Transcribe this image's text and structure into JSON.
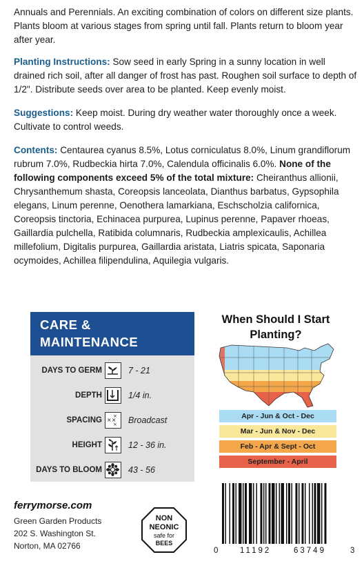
{
  "intro": "Annuals and Perennials. An exciting combination of colors on different size plants. Plants bloom at various stages from spring until fall. Plants return to bloom year after year.",
  "planting": {
    "label": "Planting Instructions:",
    "text": " Sow seed in early Spring in a sunny location in well drained rich soil, after all danger of frost has past. Roughen soil surface to depth of 1/2\". Distribute seeds over area to be planted. Keep evenly moist."
  },
  "suggestions": {
    "label": "Suggestions:",
    "text": " Keep moist. During dry weather water thoroughly once a week. Cultivate to control weeds."
  },
  "contents": {
    "label": "Contents:",
    "text": " Centaurea cyanus 8.5%, Lotus corniculatus 8.0%, Linum grandiflorum rubrum 7.0%, Rudbeckia hirta 7.0%, Calendula officinalis 6.0%. ",
    "bold_note": "None of the following components exceed 5% of the total mixture:",
    "rest": " Cheiranthus allionii, Chrysanthemum shasta, Coreopsis lanceolata, Dianthus barbatus, Gypsophila elegans, Linum perenne, Oenothera lamarkiana, Eschscholzia californica, Coreopsis tinctoria, Echinacea purpurea, Lupinus perenne, Papaver rhoeas, Gaillardia pulchella, Ratibida columnaris, Rudbeckia amplexicaulis, Achillea millefolium, Digitalis purpurea, Gaillardia aristata, Liatris spicata, Saponaria ocymoides, Achillea filipendulina, Aquilegia vulgaris."
  },
  "care": {
    "title_line1": "CARE &",
    "title_line2": "MAINTENANCE",
    "rows": [
      {
        "label": "DAYS TO GERM",
        "value": "7 - 21",
        "icon": "sprout-icon"
      },
      {
        "label": "DEPTH",
        "value": "1/4 in.",
        "icon": "depth-icon"
      },
      {
        "label": "SPACING",
        "value": "Broadcast",
        "icon": "spacing-icon"
      },
      {
        "label": "HEIGHT",
        "value": "12 - 36 in.",
        "icon": "height-icon"
      },
      {
        "label": "DAYS TO BLOOM",
        "value": "43 - 56",
        "icon": "flower-icon"
      }
    ]
  },
  "planting_map": {
    "title": "When Should I Start Planting?",
    "zones": [
      {
        "label": "Apr - Jun & Oct - Dec",
        "color": "#a9dcf3"
      },
      {
        "label": "Mar - Jun & Nov - Dec",
        "color": "#f9e79a"
      },
      {
        "label": "Feb - Apr & Sept - Oct",
        "color": "#f4a64a"
      },
      {
        "label": "September - April",
        "color": "#e8624a"
      }
    ]
  },
  "footer": {
    "site": "ferrymorse.com",
    "company": "Green Garden Products",
    "street": "202 S. Washington St.",
    "city": "Norton, MA 02766",
    "badge_line1": "NON",
    "badge_line2": "NEONIC",
    "badge_line3": "safe for",
    "badge_line4": "BEES"
  },
  "barcode": {
    "lead": "0",
    "left": "11192",
    "right": "63749",
    "check": "3"
  }
}
